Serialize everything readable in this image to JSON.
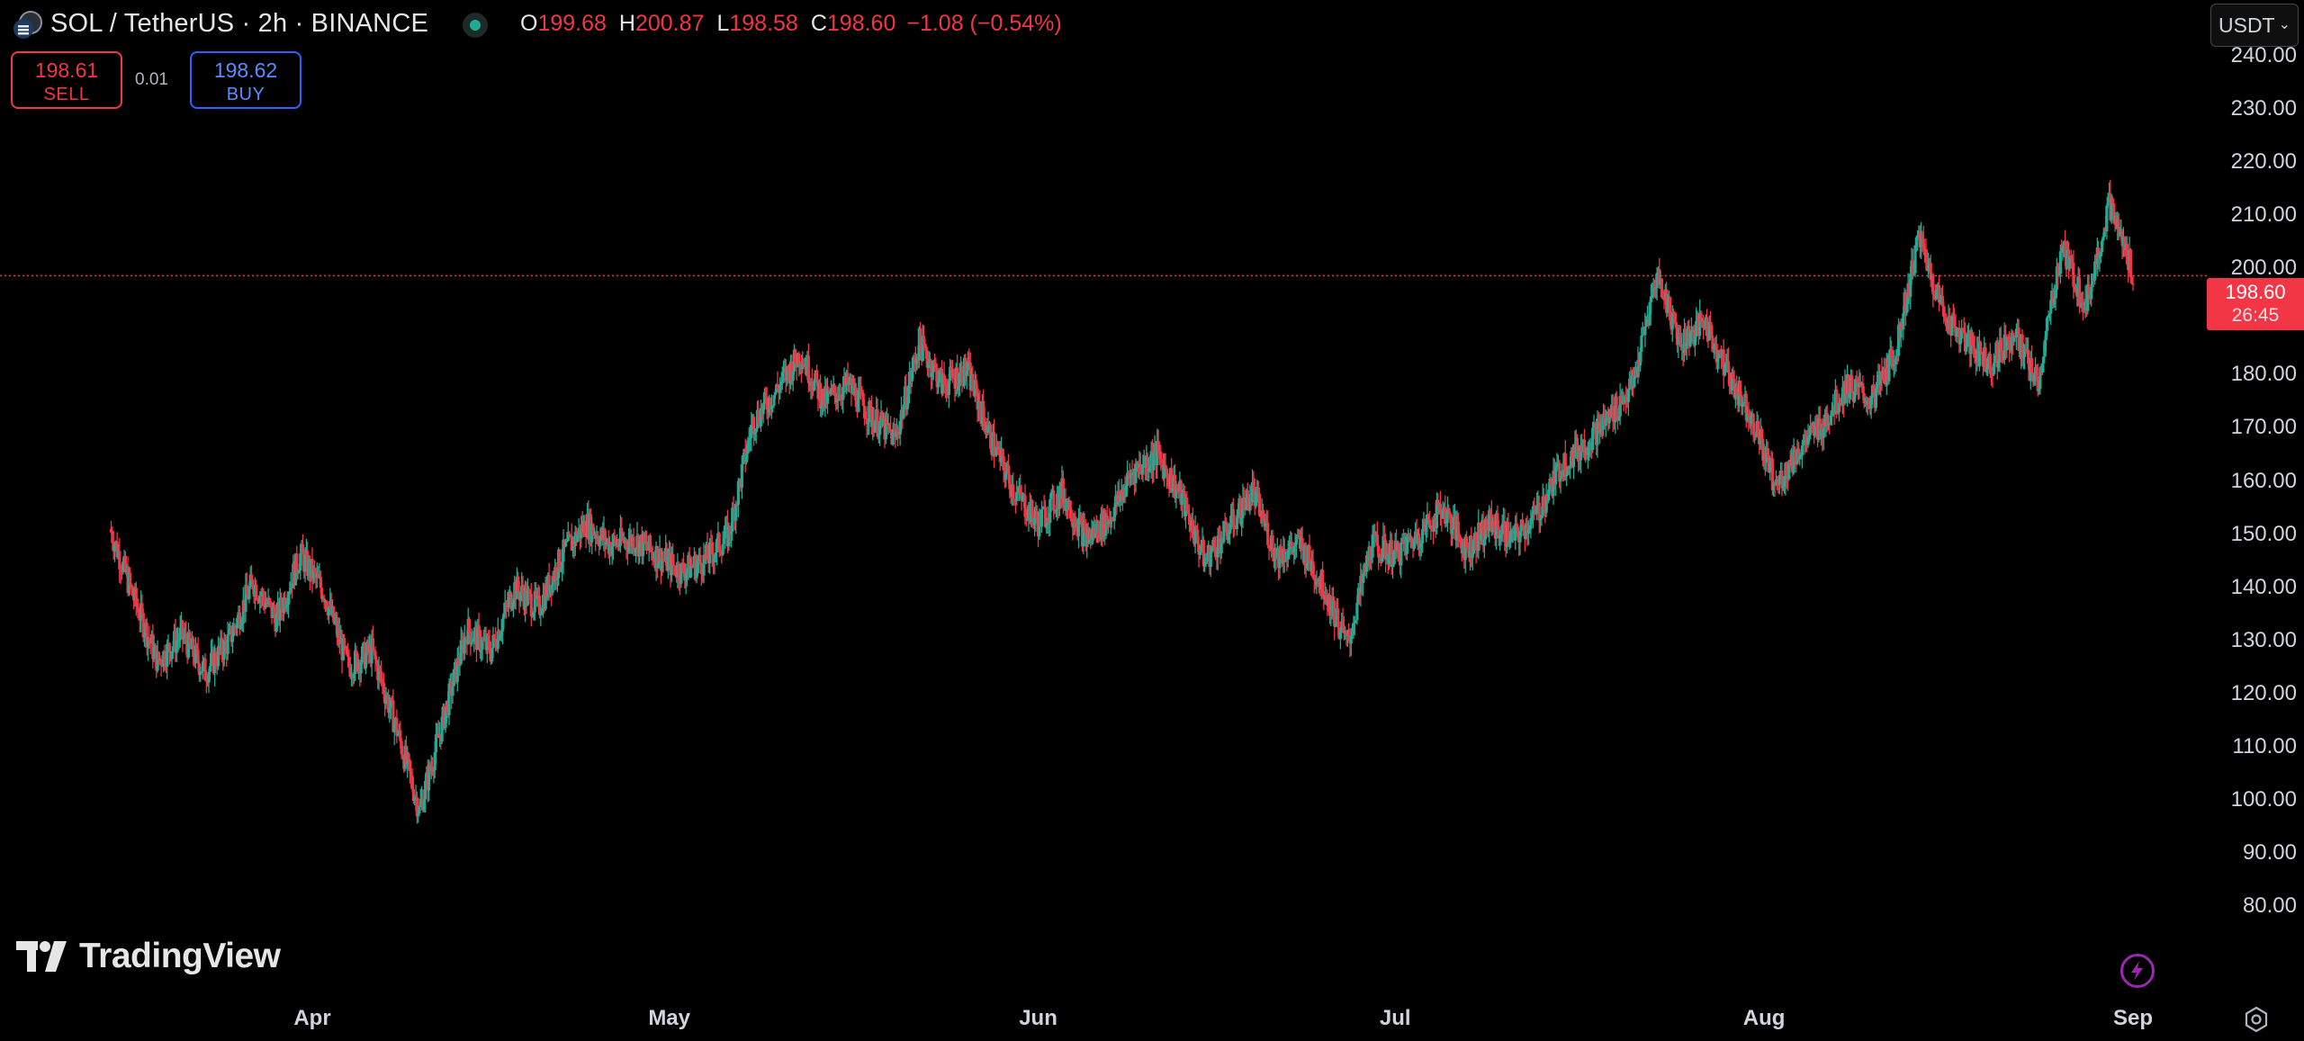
{
  "header": {
    "symbol_title": "SOL / TetherUS · 2h · BINANCE",
    "ohlc": {
      "o_label": "O",
      "o_value": "199.68",
      "h_label": "H",
      "h_value": "200.87",
      "l_label": "L",
      "l_value": "198.58",
      "c_label": "C",
      "c_value": "198.60",
      "change": "−1.08 (−0.54%)"
    },
    "status_icon": "market-open-dot"
  },
  "trade": {
    "sell_price": "198.61",
    "sell_label": "SELL",
    "spread": "0.01",
    "buy_price": "198.62",
    "buy_label": "BUY"
  },
  "currency_selector": {
    "value": "USDT"
  },
  "last_price_tag": {
    "price": "198.60",
    "countdown": "26:45"
  },
  "branding": {
    "logo_text": "TradingView"
  },
  "icons": {
    "lightning": "lightning-icon",
    "settings": "gear-icon"
  },
  "colors": {
    "up": "#22ab94",
    "down": "#f23645",
    "background": "#000000",
    "accent_buy": "#2962ff"
  },
  "chart_data": {
    "type": "candlestick",
    "title": "SOL / TetherUS · 2h · BINANCE",
    "ylim": [
      80,
      240
    ],
    "y_ticks": [
      "240.00",
      "230.00",
      "220.00",
      "210.00",
      "200.00",
      "190.00",
      "180.00",
      "170.00",
      "160.00",
      "150.00",
      "140.00",
      "130.00",
      "120.00",
      "110.00",
      "100.00",
      "90.00",
      "80.00"
    ],
    "x_ticks": [
      "Apr",
      "May",
      "Jun",
      "Jul",
      "Aug",
      "Sep"
    ],
    "current_price_line": 198.6,
    "series": [
      {
        "name": "SOLUSDT",
        "x": [
          "2024-03-15",
          "2024-03-17",
          "2024-03-19",
          "2024-03-21",
          "2024-03-23",
          "2024-03-25",
          "2024-03-27",
          "2024-03-29",
          "2024-03-31",
          "2024-04-02",
          "2024-04-04",
          "2024-04-06",
          "2024-04-08",
          "2024-04-10",
          "2024-04-12",
          "2024-04-14",
          "2024-04-16",
          "2024-04-18",
          "2024-04-20",
          "2024-04-22",
          "2024-04-24",
          "2024-04-26",
          "2024-04-28",
          "2024-04-30",
          "2024-05-02",
          "2024-05-04",
          "2024-05-06",
          "2024-05-08",
          "2024-05-10",
          "2024-05-12",
          "2024-05-14",
          "2024-05-16",
          "2024-05-18",
          "2024-05-20",
          "2024-05-22",
          "2024-05-24",
          "2024-05-26",
          "2024-05-28",
          "2024-05-30",
          "2024-06-01",
          "2024-06-03",
          "2024-06-05",
          "2024-06-07",
          "2024-06-09",
          "2024-06-11",
          "2024-06-13",
          "2024-06-15",
          "2024-06-17",
          "2024-06-19",
          "2024-06-21",
          "2024-06-23",
          "2024-06-25",
          "2024-06-27",
          "2024-06-29",
          "2024-07-01",
          "2024-07-03",
          "2024-07-05",
          "2024-07-07",
          "2024-07-09",
          "2024-07-11",
          "2024-07-13",
          "2024-07-15",
          "2024-07-17",
          "2024-07-19",
          "2024-07-21",
          "2024-07-23",
          "2024-07-25",
          "2024-07-27",
          "2024-07-29",
          "2024-07-31",
          "2024-08-02",
          "2024-08-04",
          "2024-08-06",
          "2024-08-08",
          "2024-08-10",
          "2024-08-12",
          "2024-08-14",
          "2024-08-16",
          "2024-08-18",
          "2024-08-20",
          "2024-08-22",
          "2024-08-24",
          "2024-08-26",
          "2024-08-28",
          "2024-08-30",
          "2024-09-01"
        ],
        "close": [
          151,
          138,
          126,
          131,
          124,
          130,
          141,
          134,
          146,
          139,
          125,
          128,
          114,
          98,
          115,
          132,
          128,
          140,
          136,
          146,
          152,
          148,
          149,
          146,
          143,
          145,
          150,
          171,
          177,
          184,
          175,
          178,
          172,
          168,
          186,
          178,
          181,
          168,
          158,
          152,
          158,
          149,
          153,
          162,
          165,
          157,
          145,
          151,
          158,
          146,
          148,
          140,
          129,
          148,
          146,
          150,
          155,
          147,
          152,
          149,
          154,
          163,
          167,
          172,
          178,
          199,
          186,
          190,
          180,
          172,
          159,
          166,
          171,
          178,
          175,
          184,
          206,
          192,
          186,
          182,
          188,
          178,
          204,
          193,
          212,
          199
        ]
      }
    ]
  }
}
